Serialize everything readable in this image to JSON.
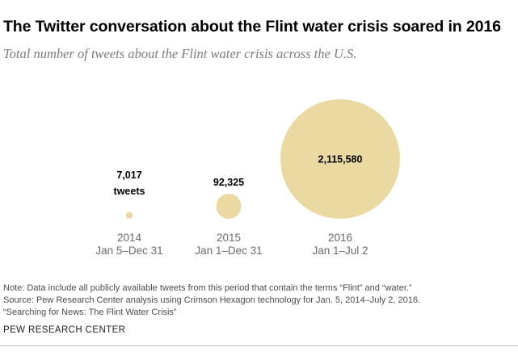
{
  "title": "The Twitter conversation about the Flint water crisis soared in 2016",
  "subtitle": "Total number of tweets about the Flint water crisis across the U.S.",
  "chart_data": {
    "type": "bubble",
    "title": "The Twitter conversation about the Flint water crisis soared in 2016",
    "subtitle": "Total number of tweets about the Flint water crisis across the U.S.",
    "bubble_color": "#ebd9a2",
    "value_unit_label": "tweets",
    "points": [
      {
        "year": "2014",
        "period": "Jan 5–Dec 31",
        "value": 7017,
        "value_label": "7,017",
        "unit_label": "tweets"
      },
      {
        "year": "2015",
        "period": "Jan 1–Dec 31",
        "value": 92325,
        "value_label": "92,325"
      },
      {
        "year": "2016",
        "period": "Jan 1–Jul 2",
        "value": 2115580,
        "value_label": "2,115,580"
      }
    ]
  },
  "notes": {
    "line1": "Note: Data include all publicly available tweets from this period that contain the terms “Flint” and “water.”",
    "line2": "Source: Pew Research Center analysis using Crimson Hexagon technology for Jan. 5, 2014–July 2, 2016.",
    "line3": "“Searching for News: The Flint Water Crisis”"
  },
  "brand": "PEW RESEARCH CENTER"
}
